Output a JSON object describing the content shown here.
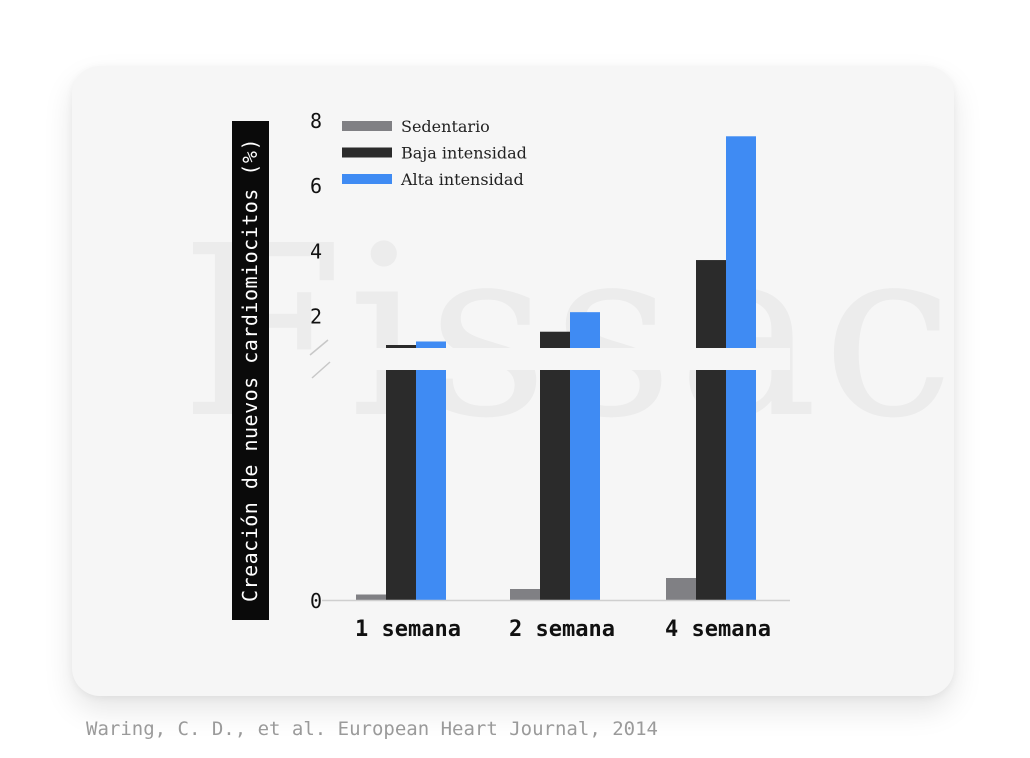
{
  "watermark": "Fissac",
  "source": "Waring, C. D., et al. European Heart Journal, 2014",
  "chart_data": {
    "type": "bar",
    "title": "",
    "ylabel": "Creación de nuevos cardiomiocitos (%)",
    "xlabel": "",
    "categories": [
      "1 semana",
      "2 semana",
      "4 semana"
    ],
    "yticks": [
      "8",
      "6",
      "4",
      "2",
      "0"
    ],
    "ylim": [
      0,
      8
    ],
    "axis_break": true,
    "legend_position": "top-left",
    "grid": false,
    "series": [
      {
        "name": "Sedentario",
        "color": "#808084",
        "values": [
          0.05,
          0.1,
          0.2
        ]
      },
      {
        "name": "Baja intensidad",
        "color": "#2b2b2b",
        "values": [
          1.0,
          1.5,
          3.7
        ]
      },
      {
        "name": "Alta intensidad",
        "color": "#3f8bf3",
        "values": [
          1.2,
          2.1,
          7.5
        ]
      }
    ]
  }
}
